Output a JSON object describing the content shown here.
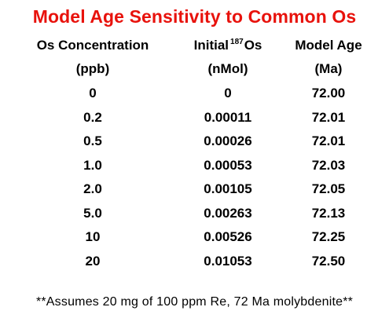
{
  "title": "Model Age Sensitivity to Common Os",
  "headers": {
    "col1": {
      "line1": "Os Concentration",
      "line2": "(ppb)"
    },
    "col2": {
      "line1_prefix": "Initial",
      "line1_sup": "187",
      "line1_suffix": "Os",
      "line2": "(nMol)"
    },
    "col3": {
      "line1": "Model Age",
      "line2": "(Ma)"
    }
  },
  "rows": [
    {
      "conc": "0",
      "os": "0",
      "age": "72.00"
    },
    {
      "conc": "0.2",
      "os": "0.00011",
      "age": "72.01"
    },
    {
      "conc": "0.5",
      "os": "0.00026",
      "age": "72.01"
    },
    {
      "conc": "1.0",
      "os": "0.00053",
      "age": "72.03"
    },
    {
      "conc": "2.0",
      "os": "0.00105",
      "age": "72.05"
    },
    {
      "conc": "5.0",
      "os": "0.00263",
      "age": "72.13"
    },
    {
      "conc": "10",
      "os": "0.00526",
      "age": "72.25"
    },
    {
      "conc": "20",
      "os": "0.01053",
      "age": "72.50"
    }
  ],
  "footnote": "**Assumes 20 mg of 100 ppm Re, 72 Ma molybdenite**",
  "colors": {
    "title": "#e8120c",
    "text": "#000000"
  }
}
